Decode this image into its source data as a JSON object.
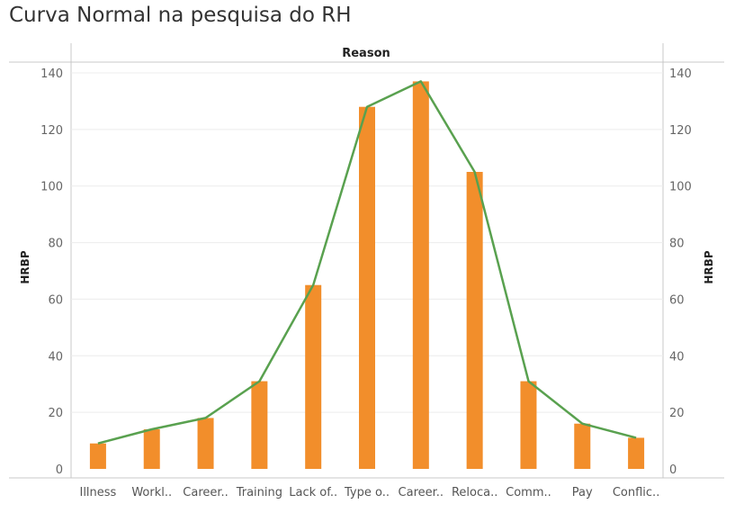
{
  "page": {
    "title": "Curva Normal na pesquisa do RH"
  },
  "chart_data": {
    "type": "bar",
    "title": "Curva Normal na pesquisa do RH",
    "header": "Reason",
    "categories": [
      "Illness",
      "Workl..",
      "Career..",
      "Training",
      "Lack of..",
      "Type o..",
      "Career..",
      "Reloca..",
      "Comm..",
      "Pay",
      "Conflic.."
    ],
    "series": [
      {
        "kind": "bar",
        "values": [
          9,
          14,
          18,
          31,
          65,
          128,
          137,
          105,
          31,
          16,
          11
        ]
      },
      {
        "kind": "line",
        "values": [
          9,
          14,
          18,
          31,
          65,
          128,
          137,
          105,
          31,
          16,
          11
        ]
      }
    ],
    "ylabel": "HRBP",
    "ylabel_right": "HRBP",
    "ylim": [
      0,
      140
    ],
    "yticks": [
      0,
      20,
      40,
      60,
      80,
      100,
      120,
      140
    ],
    "grid": true,
    "colors": {
      "bar": "#f28e2b",
      "line": "#59a14f",
      "grid": "#ececec",
      "axis": "#c8c8c8"
    }
  }
}
